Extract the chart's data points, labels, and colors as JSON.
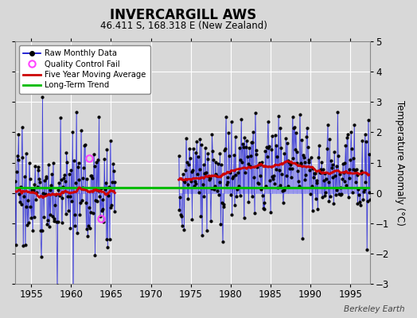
{
  "title": "INVERCARGILL AWS",
  "subtitle": "46.411 S, 168.318 E (New Zealand)",
  "ylabel": "Temperature Anomaly (°C)",
  "watermark": "Berkeley Earth",
  "ylim": [
    -3,
    5
  ],
  "yticks": [
    -3,
    -2,
    -1,
    0,
    1,
    2,
    3,
    4,
    5
  ],
  "xlim": [
    1953.0,
    1997.5
  ],
  "xticks": [
    1955,
    1960,
    1965,
    1970,
    1975,
    1980,
    1985,
    1990,
    1995
  ],
  "long_term_trend_y": 0.18,
  "background_color": "#d8d8d8",
  "plot_bg_color": "#d8d8d8",
  "line_color": "#0000cc",
  "fill_color": "#8888ee",
  "moving_avg_color": "#cc0000",
  "trend_color": "#00bb00",
  "marker_color": "#000000",
  "qc_fail_color": "#ff44ff",
  "seed": 17,
  "period1_start": 1953.0,
  "period1_end": 1965.5,
  "period2_start": 1973.5,
  "period2_end": 1997.5,
  "qc_fail_times": [
    1962.25,
    1963.75
  ],
  "qc_fail_values": [
    1.15,
    -0.85
  ]
}
